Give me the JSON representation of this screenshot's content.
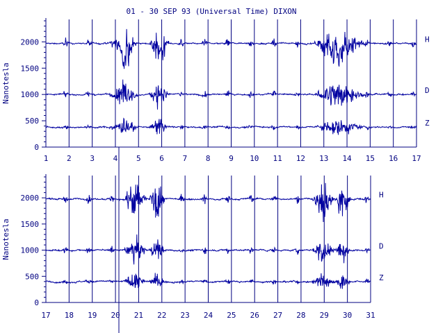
{
  "title": "01 - 30 SEP 93 (Universal Time) DIXON",
  "colors": {
    "ink": "#000080",
    "trace": "#0000a0",
    "background": "#ffffff"
  },
  "chart_data": [
    {
      "type": "line",
      "panel": "top",
      "x_ticks": [
        "1",
        "2",
        "3",
        "4",
        "5",
        "6",
        "7",
        "8",
        "9",
        "10",
        "11",
        "12",
        "13",
        "14",
        "15",
        "16",
        "17"
      ],
      "xlim": [
        1,
        17
      ],
      "ylabel": "Nanotesla",
      "ylim": [
        0,
        2400
      ],
      "y_ticks": [
        "0",
        "500",
        "1000",
        "1500",
        "2000"
      ],
      "grid": "vertical",
      "series": [
        {
          "name": "H",
          "baseline": 1970
        },
        {
          "name": "D",
          "baseline": 1000
        },
        {
          "name": "Z",
          "baseline": 380
        }
      ],
      "active_intervals": [
        [
          4.0,
          4.8
        ],
        [
          5.6,
          6.2
        ],
        [
          12.7,
          14.6
        ]
      ]
    },
    {
      "type": "line",
      "panel": "bottom",
      "x_ticks": [
        "17",
        "18",
        "19",
        "20",
        "21",
        "22",
        "23",
        "24",
        "25",
        "26",
        "27",
        "28",
        "29",
        "30",
        "31"
      ],
      "xlim": [
        17,
        31
      ],
      "ylabel": "Nanotesla",
      "ylim": [
        0,
        2400
      ],
      "y_ticks": [
        "0",
        "500",
        "1000",
        "1500",
        "2000"
      ],
      "grid": "vertical",
      "series": [
        {
          "name": "H",
          "baseline": 1980
        },
        {
          "name": "D",
          "baseline": 1000
        },
        {
          "name": "Z",
          "baseline": 400
        }
      ],
      "active_intervals": [
        [
          20.5,
          21.2
        ],
        [
          21.6,
          22.0
        ],
        [
          28.6,
          29.3
        ],
        [
          29.6,
          30.0
        ]
      ]
    }
  ]
}
